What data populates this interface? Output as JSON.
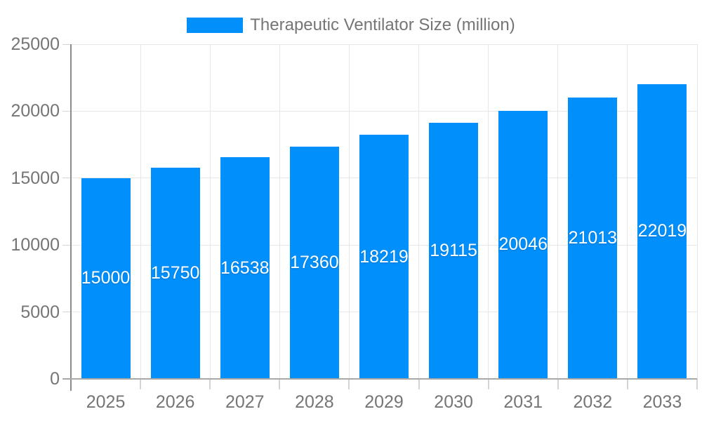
{
  "legend": {
    "label": "Therapeutic Ventilator Size (million)",
    "swatch_color": "#008FFB"
  },
  "chart_data": {
    "type": "bar",
    "title": "",
    "xlabel": "",
    "ylabel": "",
    "categories": [
      "2025",
      "2026",
      "2027",
      "2028",
      "2029",
      "2030",
      "2031",
      "2032",
      "2033"
    ],
    "series": [
      {
        "name": "Therapeutic Ventilator Size (million)",
        "values": [
          15000,
          15750,
          16538,
          17360,
          18219,
          19115,
          20046,
          21013,
          22019
        ]
      }
    ],
    "ylim": [
      0,
      25000
    ],
    "yticks": [
      0,
      5000,
      10000,
      15000,
      20000,
      25000
    ],
    "grid": true,
    "legend_position": "top",
    "data_labels_inside_bars": true,
    "colors": {
      "bar": "#008FFB",
      "data_label": "#FFFFFF",
      "axis_text": "#757575",
      "grid_line": "#E7E7E7",
      "tick": "#D4D4D4",
      "y_axis_line": "#8C8C8C",
      "x_axis_line": "#A8A8A8"
    }
  }
}
